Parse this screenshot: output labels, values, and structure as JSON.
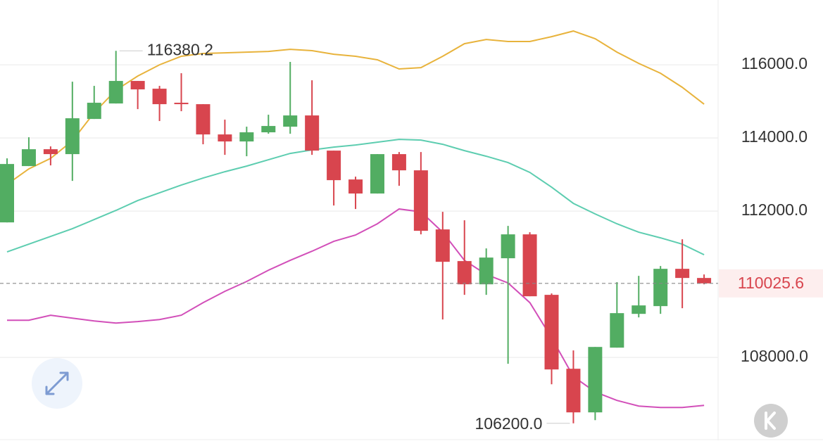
{
  "chart_data": {
    "type": "candlestick",
    "open": [
      111692,
      113231,
      113692,
      113558,
      114519,
      114942,
      115558,
      115346,
      114962,
      114923,
      114096,
      113904,
      114154,
      114308,
      114615,
      113654,
      112865,
      112481,
      113558,
      113115,
      111500,
      110635,
      110000,
      110712,
      111365,
      109712,
      107692,
      106500,
      108269,
      109192,
      109404,
      110423,
      110173
    ],
    "high": [
      113442,
      114019,
      113769,
      115538,
      115423,
      116380.2,
      115558,
      115423,
      115769,
      114923,
      114500,
      114308,
      114635,
      116077,
      115577,
      113654,
      112942,
      113558,
      113615,
      113615,
      111981,
      111750,
      110981,
      111596,
      111423,
      109750,
      108192,
      108288,
      110058,
      110231,
      110500,
      111231,
      110269
    ],
    "low": [
      111692,
      113231,
      113250,
      112827,
      114519,
      114942,
      114788,
      114462,
      114731,
      113827,
      113538,
      113500,
      114115,
      114115,
      113538,
      112154,
      112058,
      112481,
      112692,
      111365,
      109038,
      109712,
      109712,
      107827,
      109673,
      107269,
      106200.0,
      106288,
      108269,
      109096,
      109192,
      109346,
      110000
    ],
    "close": [
      113288,
      113692,
      113558,
      114538,
      114962,
      115558,
      115327,
      114923,
      114923,
      114096,
      113904,
      114154,
      114327,
      114615,
      113654,
      112846,
      112481,
      113558,
      113115,
      111462,
      110615,
      110000,
      110731,
      111365,
      109673,
      107673,
      106500,
      108288,
      109212,
      109423,
      110423,
      110173,
      110025.6
    ],
    "up_color": "#52ad62",
    "down_color": "#d8454e",
    "bands": [
      {
        "color": "#e8b33c",
        "values": [
          112731,
          113154,
          113442,
          113923,
          114692,
          115308,
          115692,
          116000,
          116231,
          116308,
          116327,
          116346,
          116365,
          116423,
          116385,
          116288,
          116231,
          116135,
          115885,
          115923,
          116231,
          116577,
          116692,
          116635,
          116635,
          116769,
          116923,
          116712,
          116346,
          116038,
          115769,
          115385,
          114923
        ]
      },
      {
        "color": "#5dcdb0",
        "values": [
          110885,
          111096,
          111308,
          111519,
          111769,
          112019,
          112288,
          112500,
          112712,
          112904,
          113077,
          113231,
          113404,
          113577,
          113673,
          113750,
          113808,
          113885,
          113962,
          113942,
          113827,
          113654,
          113500,
          113327,
          113058,
          112654,
          112212,
          111923,
          111654,
          111423,
          111269,
          111096,
          110808
        ]
      },
      {
        "color": "#d24fb9",
        "values": [
          109019,
          109019,
          109154,
          109077,
          109000,
          108942,
          108981,
          109038,
          109154,
          109500,
          109808,
          110077,
          110385,
          110654,
          110904,
          111173,
          111346,
          111654,
          112058,
          111981,
          111423,
          110654,
          110269,
          110038,
          109500,
          108538,
          107481,
          107058,
          106827,
          106673,
          106635,
          106635,
          106692
        ]
      }
    ],
    "ylim": [
      105850,
      117770
    ],
    "yticks": [
      {
        "value": 108000,
        "label": "108000.0"
      },
      {
        "value": 112000,
        "label": "112000.0"
      },
      {
        "value": 114000,
        "label": "114000.0"
      },
      {
        "value": 116000,
        "label": "116000.0"
      }
    ],
    "grid": true,
    "high_label": "116380.2",
    "low_label": "106200.0",
    "last_price": 110025.6
  }
}
